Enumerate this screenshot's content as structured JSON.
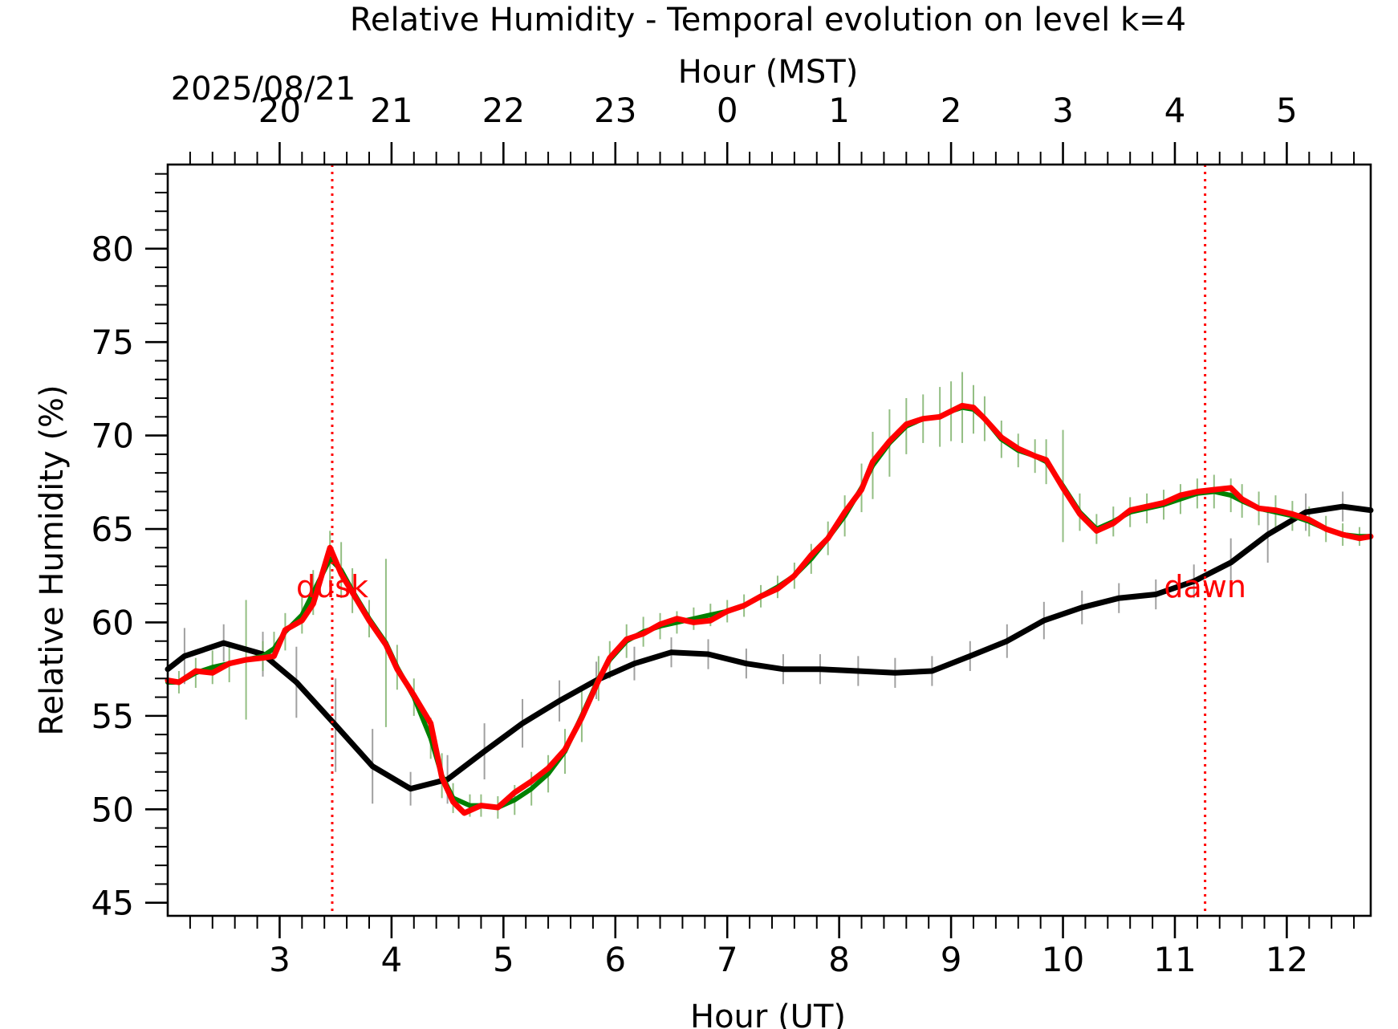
{
  "chart_data": {
    "type": "line",
    "title": "Relative Humidity - Temporal evolution on level k=4",
    "date_label": "2025/08/21",
    "xlabel": "Hour (UT)",
    "x2label": "Hour (MST)",
    "ylabel": "Relative Humidity (%)",
    "xlim": [
      2.0,
      12.75
    ],
    "ylim": [
      44.3,
      84.5
    ],
    "x_ticks": [
      3,
      4,
      5,
      6,
      7,
      8,
      9,
      10,
      11,
      12
    ],
    "x2_ticks": [
      {
        "label": "20",
        "x": 3
      },
      {
        "label": "21",
        "x": 4
      },
      {
        "label": "22",
        "x": 5
      },
      {
        "label": "23",
        "x": 6
      },
      {
        "label": "0",
        "x": 7
      },
      {
        "label": "1",
        "x": 8
      },
      {
        "label": "2",
        "x": 9
      },
      {
        "label": "3",
        "x": 10
      },
      {
        "label": "4",
        "x": 11
      },
      {
        "label": "5",
        "x": 12
      }
    ],
    "y_ticks": [
      45,
      50,
      55,
      60,
      65,
      70,
      75,
      80
    ],
    "grid": false,
    "annotations": [
      {
        "label": "dusk",
        "x": 3.47
      },
      {
        "label": "dawn",
        "x": 11.27
      }
    ],
    "series": [
      {
        "color": "#000000",
        "x": [
          2.0,
          2.15,
          2.5,
          2.85,
          3.15,
          3.5,
          3.83,
          4.17,
          4.5,
          4.83,
          5.17,
          5.5,
          5.83,
          6.17,
          6.5,
          6.83,
          7.17,
          7.5,
          7.83,
          8.17,
          8.5,
          8.83,
          9.17,
          9.5,
          9.83,
          10.17,
          10.5,
          10.83,
          11.17,
          11.5,
          11.83,
          12.17,
          12.5,
          12.75
        ],
        "y": [
          57.5,
          58.2,
          58.9,
          58.3,
          56.8,
          54.5,
          52.3,
          51.1,
          51.6,
          53.1,
          54.6,
          55.8,
          56.9,
          57.8,
          58.4,
          58.3,
          57.8,
          57.5,
          57.5,
          57.4,
          57.3,
          57.4,
          58.2,
          59.0,
          60.1,
          60.8,
          61.3,
          61.5,
          62.2,
          63.2,
          64.7,
          65.9,
          66.2,
          66.0
        ],
        "err": [
          0,
          1.5,
          1.0,
          1.2,
          1.9,
          2.5,
          2.0,
          0.9,
          1.3,
          1.5,
          1.3,
          1.1,
          1.0,
          0.9,
          0.8,
          0.8,
          0.8,
          0.8,
          0.8,
          0.8,
          0.8,
          0.8,
          0.8,
          0.9,
          1.0,
          0.9,
          0.8,
          0.8,
          0.9,
          1.3,
          1.5,
          1.0,
          0.8,
          0.5
        ]
      },
      {
        "color": "#008000",
        "x": [
          2.0,
          2.1,
          2.25,
          2.4,
          2.55,
          2.7,
          2.85,
          2.95,
          3.05,
          3.2,
          3.3,
          3.45,
          3.55,
          3.65,
          3.8,
          3.95,
          4.05,
          4.2,
          4.35,
          4.45,
          4.55,
          4.7,
          4.8,
          4.95,
          5.1,
          5.25,
          5.4,
          5.55,
          5.7,
          5.85,
          5.95,
          6.1,
          6.25,
          6.4,
          6.55,
          6.7,
          6.85,
          7.0,
          7.15,
          7.3,
          7.45,
          7.6,
          7.75,
          7.9,
          8.05,
          8.2,
          8.3,
          8.45,
          8.6,
          8.75,
          8.9,
          9.0,
          9.1,
          9.2,
          9.3,
          9.45,
          9.6,
          9.75,
          9.85,
          10.0,
          10.15,
          10.3,
          10.45,
          10.6,
          10.75,
          10.9,
          11.05,
          11.2,
          11.35,
          11.5,
          11.6,
          11.75,
          11.9,
          12.05,
          12.2,
          12.35,
          12.5,
          12.65,
          12.75
        ],
        "y": [
          56.8,
          56.8,
          57.3,
          57.6,
          57.8,
          58.0,
          58.2,
          58.6,
          59.5,
          60.4,
          61.6,
          63.4,
          62.8,
          61.7,
          60.2,
          58.9,
          57.6,
          56.0,
          53.8,
          51.8,
          50.6,
          50.2,
          50.2,
          50.1,
          50.5,
          51.1,
          51.9,
          53.1,
          55.0,
          57.0,
          58.0,
          59.0,
          59.5,
          59.8,
          60.0,
          60.2,
          60.4,
          60.6,
          60.9,
          61.4,
          61.9,
          62.5,
          63.4,
          64.5,
          65.7,
          67.2,
          68.4,
          69.6,
          70.5,
          70.9,
          71.0,
          71.3,
          71.5,
          71.4,
          70.9,
          69.8,
          69.2,
          68.9,
          68.6,
          67.3,
          65.9,
          65.0,
          65.4,
          65.9,
          66.1,
          66.3,
          66.6,
          66.9,
          67.0,
          66.8,
          66.5,
          66.1,
          65.9,
          65.7,
          65.4,
          65.0,
          64.7,
          64.6,
          64.6
        ],
        "err": [
          0,
          0.6,
          0.8,
          0.9,
          1.0,
          3.2,
          0.8,
          0.9,
          1.0,
          1.0,
          1.2,
          1.5,
          1.5,
          1.2,
          1.0,
          4.5,
          1.2,
          1.0,
          1.1,
          1.2,
          0.8,
          0.6,
          0.6,
          0.6,
          0.8,
          0.9,
          1.0,
          1.2,
          1.4,
          1.2,
          1.0,
          0.9,
          0.8,
          0.7,
          0.6,
          0.6,
          0.6,
          0.6,
          0.6,
          0.6,
          0.6,
          0.7,
          0.8,
          0.9,
          1.1,
          1.3,
          1.8,
          1.8,
          1.5,
          1.3,
          1.6,
          1.6,
          1.9,
          1.3,
          1.2,
          1.0,
          0.9,
          0.9,
          1.2,
          3.0,
          1.0,
          0.8,
          0.8,
          0.8,
          0.8,
          0.8,
          0.8,
          0.8,
          0.9,
          0.9,
          0.9,
          0.9,
          0.9,
          0.8,
          0.8,
          0.7,
          0.6,
          0.5,
          0.5
        ]
      },
      {
        "color": "#ff0000",
        "x": [
          2.0,
          2.1,
          2.25,
          2.4,
          2.55,
          2.7,
          2.85,
          2.95,
          3.05,
          3.2,
          3.3,
          3.45,
          3.55,
          3.65,
          3.8,
          3.95,
          4.05,
          4.2,
          4.35,
          4.45,
          4.55,
          4.65,
          4.8,
          4.95,
          5.1,
          5.25,
          5.4,
          5.55,
          5.7,
          5.85,
          5.95,
          6.1,
          6.25,
          6.4,
          6.55,
          6.7,
          6.85,
          7.0,
          7.15,
          7.3,
          7.45,
          7.6,
          7.75,
          7.9,
          8.05,
          8.2,
          8.3,
          8.45,
          8.6,
          8.75,
          8.9,
          9.0,
          9.1,
          9.2,
          9.3,
          9.45,
          9.6,
          9.75,
          9.85,
          10.0,
          10.15,
          10.3,
          10.45,
          10.6,
          10.75,
          10.9,
          11.05,
          11.2,
          11.35,
          11.5,
          11.6,
          11.75,
          11.9,
          12.05,
          12.2,
          12.35,
          12.5,
          12.65,
          12.75
        ],
        "y": [
          56.9,
          56.8,
          57.4,
          57.3,
          57.8,
          58.0,
          58.1,
          58.2,
          59.6,
          60.1,
          61.0,
          64.0,
          62.6,
          61.6,
          60.1,
          58.8,
          57.5,
          56.1,
          54.6,
          51.7,
          50.4,
          49.8,
          50.2,
          50.1,
          50.9,
          51.5,
          52.2,
          53.2,
          54.9,
          56.9,
          58.1,
          59.1,
          59.4,
          59.9,
          60.2,
          60.0,
          60.1,
          60.6,
          60.9,
          61.4,
          61.8,
          62.5,
          63.6,
          64.5,
          65.9,
          67.1,
          68.6,
          69.7,
          70.6,
          70.9,
          71.0,
          71.3,
          71.6,
          71.5,
          70.9,
          69.9,
          69.3,
          68.9,
          68.7,
          67.2,
          65.8,
          64.9,
          65.3,
          66.0,
          66.2,
          66.4,
          66.8,
          67.0,
          67.1,
          67.2,
          66.6,
          66.1,
          66.0,
          65.8,
          65.5,
          65.0,
          64.7,
          64.5,
          64.6
        ],
        "err": [
          0,
          0,
          0,
          0,
          0,
          0,
          0,
          0,
          0,
          0,
          0,
          0,
          0,
          0,
          0,
          0,
          0,
          0,
          0,
          0,
          0,
          0,
          0,
          0,
          0,
          0,
          0,
          0,
          0,
          0,
          0,
          0,
          0,
          0,
          0,
          0,
          0,
          0,
          0,
          0,
          0,
          0,
          0,
          0,
          0,
          0,
          0,
          0,
          0,
          0,
          0,
          0,
          0,
          0,
          0,
          0,
          0,
          0,
          0,
          0,
          0,
          0,
          0,
          0,
          0,
          0,
          0,
          0,
          0,
          0,
          0,
          0,
          0,
          0,
          0,
          0,
          0,
          0,
          0
        ]
      }
    ]
  }
}
